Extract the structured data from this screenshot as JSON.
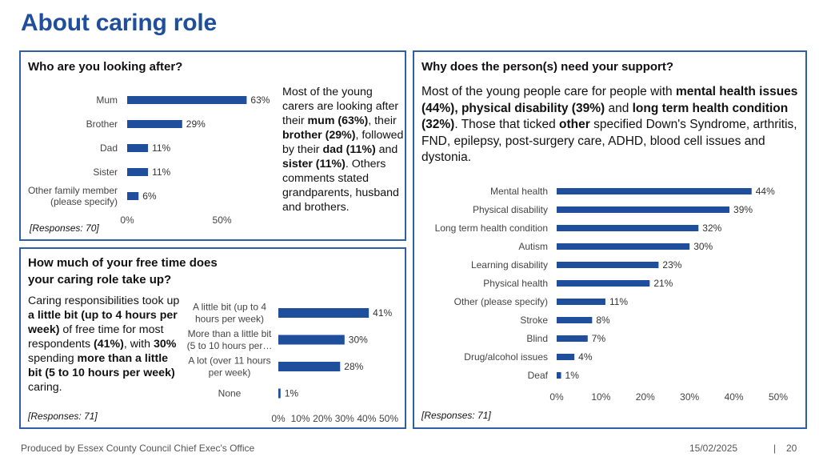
{
  "page_title": "About caring role",
  "footer": {
    "producer": "Produced by Essex County Council Chief Exec's Office",
    "date": "15/02/2025",
    "separator": "|",
    "page": "20"
  },
  "colors": {
    "bar": "#1f4e9c",
    "title": "#1f4e9c",
    "border": "#2f5ea8"
  },
  "panel_who": {
    "title": "Who are you looking after?",
    "text_parts": [
      {
        "t": "Most of the young carers are looking after their ",
        "b": false
      },
      {
        "t": "mum (63%)",
        "b": true
      },
      {
        "t": ", their ",
        "b": false
      },
      {
        "t": "brother (29%)",
        "b": true
      },
      {
        "t": ", followed by their ",
        "b": false
      },
      {
        "t": "dad (11%)",
        "b": true
      },
      {
        "t": " and ",
        "b": false
      },
      {
        "t": "sister (11%)",
        "b": true
      },
      {
        "t": ". Others comments stated grandparents, husband and brothers.",
        "b": false
      }
    ],
    "responses": "[Responses: 70]"
  },
  "panel_time": {
    "title_line1": "How much of your free time does",
    "title_line2": "your caring role take up?",
    "text_parts": [
      {
        "t": "Caring responsibilities took up ",
        "b": false
      },
      {
        "t": "a little bit (up to 4 hours per week)",
        "b": true
      },
      {
        "t": " of free time for most respondents ",
        "b": false
      },
      {
        "t": "(41%)",
        "b": true
      },
      {
        "t": ", with ",
        "b": false
      },
      {
        "t": "30%",
        "b": true
      },
      {
        "t": " spending ",
        "b": false
      },
      {
        "t": "more than a little bit (5 to 10 hours per week)",
        "b": true
      },
      {
        "t": " caring.",
        "b": false
      }
    ],
    "responses": "[Responses: 71]"
  },
  "panel_why": {
    "title": "Why does the person(s) need your support?",
    "text_parts": [
      {
        "t": "Most of the young people care for people with ",
        "b": false
      },
      {
        "t": "mental health issues (44%), physical disability (39%)",
        "b": true
      },
      {
        "t": " and ",
        "b": false
      },
      {
        "t": "long term health condition (32%)",
        "b": true
      },
      {
        "t": ". Those that ticked ",
        "b": false
      },
      {
        "t": "other",
        "b": true
      },
      {
        "t": " specified Down's Syndrome, arthritis, FND, epilepsy, post-surgery care, ADHD, blood cell issues and dystonia.",
        "b": false
      }
    ],
    "responses": "[Responses: 71]"
  },
  "chart_data": [
    {
      "type": "bar",
      "orientation": "horizontal",
      "title": "Who are you looking after?",
      "categories": [
        [
          "Mum"
        ],
        [
          "Brother"
        ],
        [
          "Dad"
        ],
        [
          "Sister"
        ],
        [
          "Other family member",
          "(please specify)"
        ]
      ],
      "values": [
        63,
        29,
        11,
        11,
        6
      ],
      "value_labels": [
        "63%",
        "29%",
        "11%",
        "11%",
        "6%"
      ],
      "xlim": [
        0,
        70
      ],
      "ticks": [
        0,
        50
      ],
      "tick_labels": [
        "0%",
        "50%"
      ]
    },
    {
      "type": "bar",
      "orientation": "horizontal",
      "title": "How much of your free time does your caring role take up?",
      "categories": [
        [
          "A little bit (up to 4",
          "hours per week)"
        ],
        [
          "More than a little bit",
          "(5 to 10 hours per…"
        ],
        [
          "A lot (over 11 hours",
          "per week)"
        ],
        [
          "None"
        ]
      ],
      "values": [
        41,
        30,
        28,
        1
      ],
      "value_labels": [
        "41%",
        "30%",
        "28%",
        "1%"
      ],
      "xlim": [
        0,
        50
      ],
      "ticks": [
        0,
        10,
        20,
        30,
        40,
        50
      ],
      "tick_labels": [
        "0%",
        "10%",
        "20%",
        "30%",
        "40%",
        "50%"
      ]
    },
    {
      "type": "bar",
      "orientation": "horizontal",
      "title": "Why does the person(s) need your support?",
      "categories": [
        [
          "Mental health"
        ],
        [
          "Physical disability"
        ],
        [
          "Long term health condition"
        ],
        [
          "Autism"
        ],
        [
          "Learning disability"
        ],
        [
          "Physical health"
        ],
        [
          "Other (please specify)"
        ],
        [
          "Stroke"
        ],
        [
          "Blind"
        ],
        [
          "Drug/alcohol issues"
        ],
        [
          "Deaf"
        ]
      ],
      "values": [
        44,
        39,
        32,
        30,
        23,
        21,
        11,
        8,
        7,
        4,
        1
      ],
      "value_labels": [
        "44%",
        "39%",
        "32%",
        "30%",
        "23%",
        "21%",
        "11%",
        "8%",
        "7%",
        "4%",
        "1%"
      ],
      "xlim": [
        0,
        50
      ],
      "ticks": [
        0,
        10,
        20,
        30,
        40,
        50
      ],
      "tick_labels": [
        "0%",
        "10%",
        "20%",
        "30%",
        "40%",
        "50%"
      ]
    }
  ]
}
